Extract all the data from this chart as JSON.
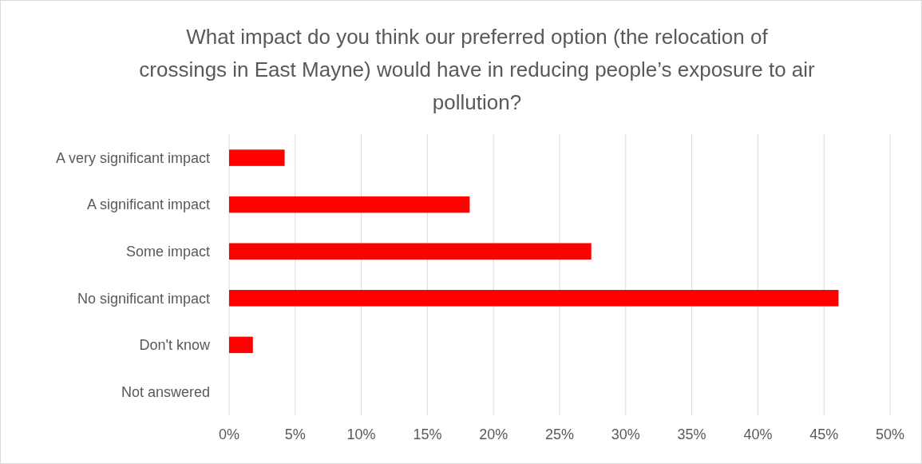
{
  "chart_data": {
    "type": "bar",
    "orientation": "horizontal",
    "title": "What impact do you think our preferred option (the relocation of crossings in East Mayne) would have in reducing people’s exposure to air pollution?",
    "categories": [
      "A very significant impact",
      "A significant impact",
      "Some impact",
      "No significant impact",
      "Don't know",
      "Not answered"
    ],
    "values": [
      4.2,
      18.2,
      27.4,
      46.1,
      1.8,
      0
    ],
    "color": "#ff0000",
    "xlim": [
      0,
      50
    ],
    "xticks": [
      {
        "value": 0,
        "label": "0%"
      },
      {
        "value": 5,
        "label": "5%"
      },
      {
        "value": 10,
        "label": "10%"
      },
      {
        "value": 15,
        "label": "15%"
      },
      {
        "value": 20,
        "label": "20%"
      },
      {
        "value": 25,
        "label": "25%"
      },
      {
        "value": 30,
        "label": "30%"
      },
      {
        "value": 35,
        "label": "35%"
      },
      {
        "value": 40,
        "label": "40%"
      },
      {
        "value": 45,
        "label": "45%"
      },
      {
        "value": 50,
        "label": "50%"
      }
    ],
    "grid": "x"
  }
}
